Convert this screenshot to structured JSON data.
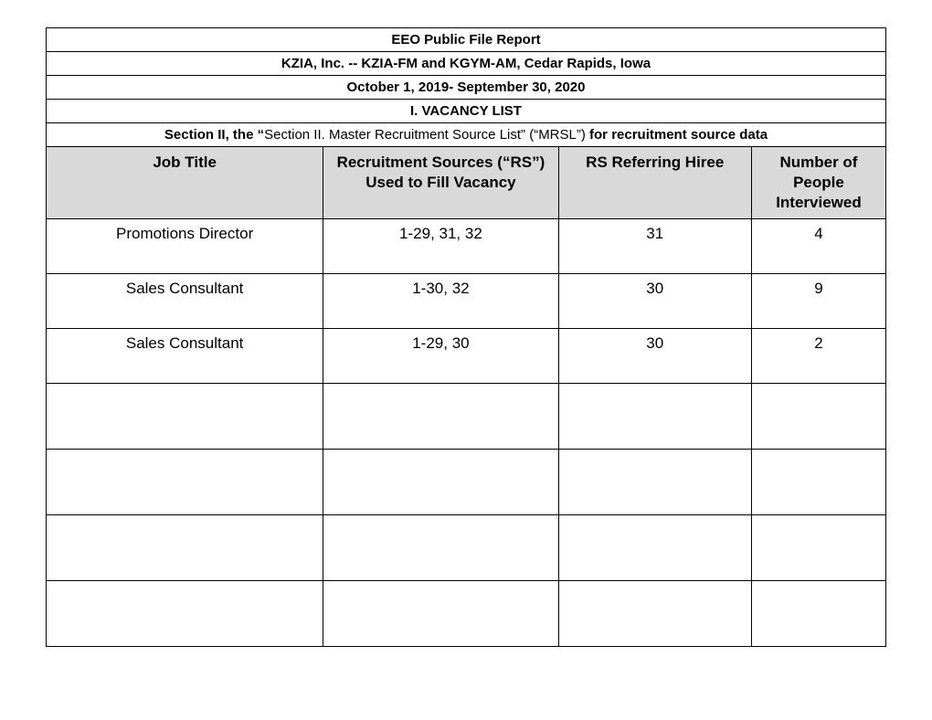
{
  "header": {
    "title": "EEO Public File Report",
    "subtitle": "KZIA, Inc. -- KZIA-FM and KGYM-AM, Cedar Rapids, Iowa",
    "date_range": "October 1, 2019- September 30, 2020",
    "section": "I.  VACANCY LIST"
  },
  "note": {
    "prefix": "Section II, the “",
    "middle": "Section II.  Master Recruitment Source List” (“MRSL”)",
    "suffix": " for recruitment source data"
  },
  "columns": {
    "job_title": "Job Title",
    "sources": "Recruitment Sources (“RS”) Used to Fill Vacancy",
    "referring": "RS Referring Hiree",
    "interviewed": "Number of People Interviewed"
  },
  "rows": [
    {
      "job_title": "Promotions Director",
      "sources": "1-29, 31, 32",
      "referring": "31",
      "interviewed": "4"
    },
    {
      "job_title": "Sales Consultant",
      "sources": "1-30, 32",
      "referring": "30",
      "interviewed": "9"
    },
    {
      "job_title": "Sales Consultant",
      "sources": "1-29, 30",
      "referring": "30",
      "interviewed": "2"
    }
  ],
  "empty_row_count": 4,
  "col_widths": {
    "job": "33%",
    "sources": "28%",
    "referring": "23%",
    "interviewed": "16%"
  },
  "colors": {
    "header_bg": "#d9d9d9",
    "border": "#000000",
    "background": "#ffffff",
    "text": "#000000"
  }
}
